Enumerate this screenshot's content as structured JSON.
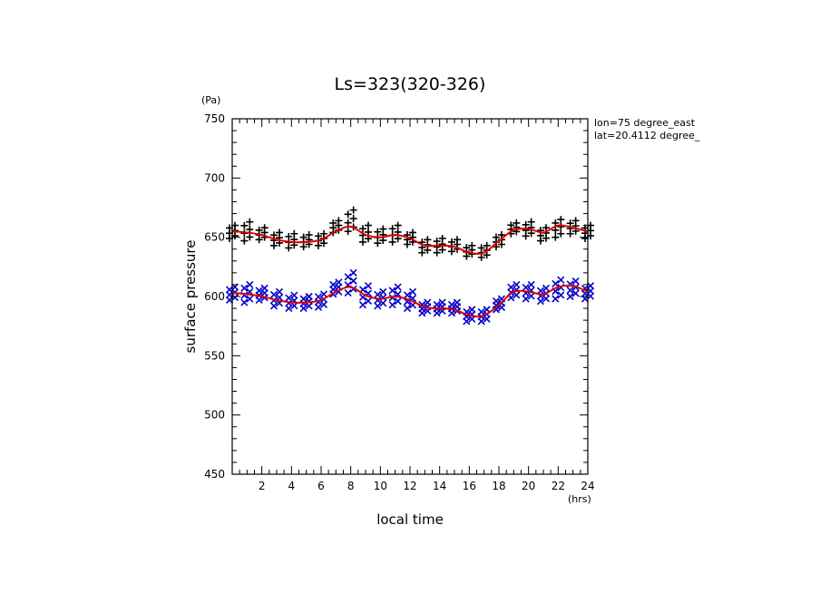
{
  "chart_data": {
    "type": "scatter",
    "title": "Ls=323(320-326)",
    "xlabel": "local time",
    "ylabel": "surface pressure",
    "x_unit": "(hrs)",
    "y_unit": "(Pa)",
    "xlim": [
      0,
      24
    ],
    "ylim": [
      450,
      750
    ],
    "x_ticks": [
      2,
      4,
      6,
      8,
      10,
      12,
      14,
      16,
      18,
      20,
      22,
      24
    ],
    "y_ticks": [
      450,
      500,
      550,
      600,
      650,
      700,
      750
    ],
    "grid": false,
    "annotations": [
      "lon=75 degree_east",
      "lat=20.4112 degree_"
    ],
    "hours": [
      0,
      1,
      2,
      3,
      4,
      5,
      6,
      7,
      8,
      9,
      10,
      11,
      12,
      13,
      14,
      15,
      16,
      17,
      18,
      19,
      20,
      21,
      22,
      23,
      24
    ],
    "series": [
      {
        "marker": "+",
        "color": "#000000",
        "x": [
          0,
          1,
          2,
          3,
          4,
          5,
          6,
          7,
          8,
          9,
          10,
          11,
          12,
          13,
          14,
          15,
          16,
          17,
          18,
          19,
          20,
          21,
          22,
          23,
          24
        ],
        "min": [
          649,
          647,
          648,
          643,
          641,
          642,
          643,
          654,
          655,
          646,
          645,
          646,
          644,
          637,
          637,
          638,
          634,
          633,
          642,
          653,
          651,
          647,
          650,
          653,
          649
        ],
        "max": [
          660,
          663,
          658,
          654,
          653,
          652,
          653,
          664,
          673,
          660,
          657,
          660,
          654,
          648,
          649,
          648,
          643,
          643,
          652,
          662,
          663,
          658,
          665,
          664,
          660
        ]
      },
      {
        "marker": "x",
        "color": "#0000cc",
        "x": [
          0,
          1,
          2,
          3,
          4,
          5,
          6,
          7,
          8,
          9,
          10,
          11,
          12,
          13,
          14,
          15,
          16,
          17,
          18,
          19,
          20,
          21,
          22,
          23,
          24
        ],
        "min": [
          597,
          595,
          597,
          592,
          590,
          590,
          591,
          602,
          603,
          593,
          592,
          593,
          590,
          586,
          586,
          586,
          579,
          579,
          589,
          599,
          598,
          596,
          598,
          600,
          598
        ],
        "max": [
          608,
          610,
          607,
          604,
          601,
          600,
          602,
          612,
          620,
          609,
          604,
          608,
          604,
          595,
          595,
          595,
          589,
          589,
          598,
          610,
          610,
          607,
          614,
          613,
          609
        ]
      }
    ],
    "fit_lines": [
      {
        "color": "#dd0000",
        "x": [
          0,
          1,
          2,
          3,
          4,
          5,
          6,
          7,
          8,
          9,
          10,
          11,
          12,
          13,
          14,
          15,
          16,
          17,
          18,
          19,
          20,
          21,
          22,
          23,
          24
        ],
        "y": [
          655,
          654,
          652,
          648,
          646,
          646,
          648,
          655,
          659,
          652,
          650,
          652,
          649,
          643,
          643,
          642,
          637,
          637,
          647,
          656,
          657,
          654,
          660,
          658,
          655
        ]
      },
      {
        "color": "#dd0000",
        "x": [
          0,
          1,
          2,
          3,
          4,
          5,
          6,
          7,
          8,
          9,
          10,
          11,
          12,
          13,
          14,
          15,
          16,
          17,
          18,
          19,
          20,
          21,
          22,
          23,
          24
        ],
        "y": [
          603,
          602,
          600,
          597,
          595,
          595,
          597,
          604,
          608,
          601,
          598,
          600,
          597,
          591,
          590,
          589,
          584,
          584,
          593,
          604,
          604,
          602,
          608,
          609,
          604
        ]
      }
    ]
  }
}
